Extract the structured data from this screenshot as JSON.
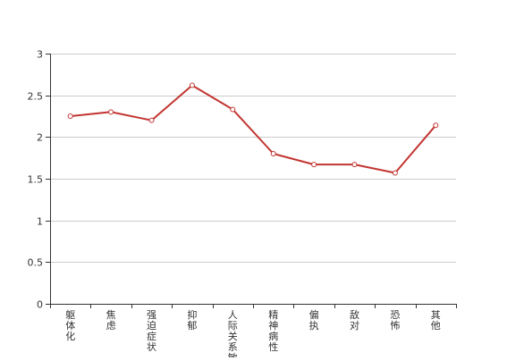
{
  "chart_data": {
    "type": "line",
    "title": "",
    "xlabel": "",
    "ylabel": "",
    "ylim": [
      0,
      3
    ],
    "yticks": [
      0,
      0.5,
      1,
      1.5,
      2,
      2.5,
      3
    ],
    "ytick_labels": [
      "0",
      "0.5",
      "1",
      "1.5",
      "2",
      "2.5",
      "3"
    ],
    "grid": "horizontal",
    "categories": [
      "躯体化",
      "焦虑",
      "强迫症状",
      "抑郁",
      "人际关系敏感",
      "精神病性",
      "偏执",
      "敌对",
      "恐怖",
      "其他"
    ],
    "series": [
      {
        "values": [
          2.25,
          2.3,
          2.2,
          2.62,
          2.33,
          1.8,
          1.67,
          1.67,
          1.57,
          2.14
        ],
        "color": "#c23531"
      }
    ],
    "colors": {
      "line": "#c23531",
      "point_fill": "#ffffff",
      "grid": "#cccccc",
      "axis": "#333333",
      "text": "#333333"
    }
  }
}
